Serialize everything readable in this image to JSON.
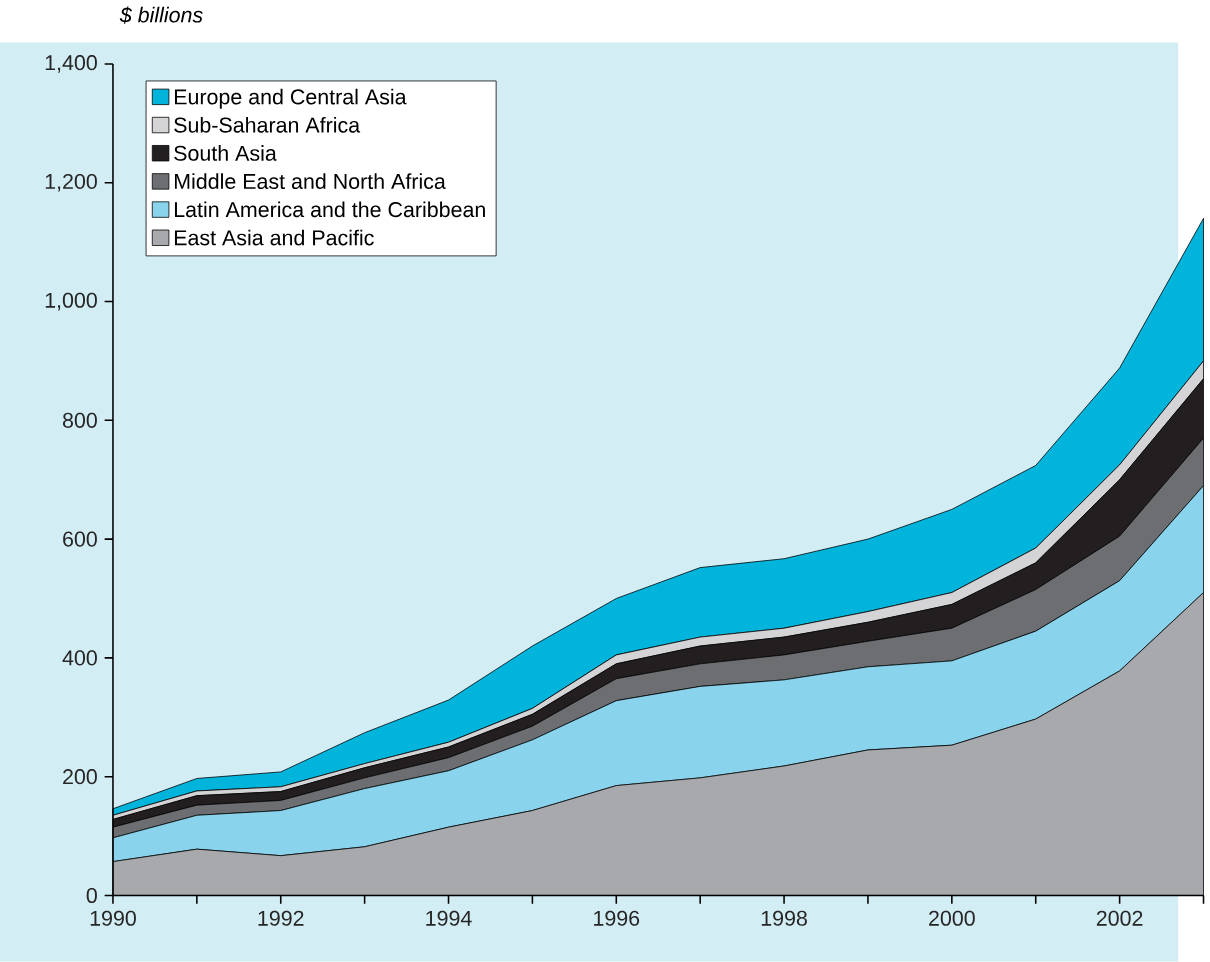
{
  "chart_data": {
    "type": "area",
    "stacked": true,
    "ylabel": "$ billions",
    "legend": "top left",
    "grid": false,
    "x": [
      1990,
      1991,
      1992,
      1993,
      1994,
      1995,
      1996,
      1997,
      1998,
      1999,
      2000,
      2001,
      2002,
      2003
    ],
    "xlim": [
      1990,
      2003
    ],
    "xticks": [
      1990,
      {
        "value": 1991,
        "label": null
      },
      1992,
      {
        "value": 1993,
        "label": null
      },
      1994,
      {
        "value": 1995,
        "label": null
      },
      1996,
      {
        "value": 1997,
        "label": null
      },
      1998,
      {
        "value": 1999,
        "label": null
      },
      2000,
      {
        "value": 2001,
        "label": null
      },
      2002,
      {
        "value": 2003,
        "label": null
      }
    ],
    "ylim": [
      0,
      1400
    ],
    "yticks": [
      0,
      200,
      400,
      600,
      800,
      {
        "value": 1000,
        "label": "1,000"
      },
      {
        "value": 1200,
        "label": "1,200"
      },
      {
        "value": 1400,
        "label": "1,400"
      }
    ],
    "series": [
      {
        "name": "East Asia and Pacific",
        "color": "#a7a9ac",
        "values": [
          57,
          78,
          67,
          82,
          115,
          143,
          185,
          198,
          218,
          245,
          253,
          297,
          378,
          510
        ]
      },
      {
        "name": "Latin America and the Caribbean",
        "color": "#89d4ec",
        "values": [
          40,
          57,
          76,
          98,
          95,
          119,
          143,
          154,
          145,
          140,
          142,
          148,
          152,
          180
        ]
      },
      {
        "name": "Middle East and North Africa",
        "color": "#6d6e71",
        "values": [
          18,
          17,
          17,
          18,
          22,
          23,
          37,
          38,
          42,
          43,
          55,
          70,
          75,
          80
        ]
      },
      {
        "name": "South Asia",
        "color": "#231f20",
        "values": [
          13,
          16,
          15,
          17,
          18,
          20,
          25,
          30,
          30,
          32,
          40,
          45,
          95,
          100
        ]
      },
      {
        "name": "Sub-Saharan Africa",
        "color": "#d4d4d6",
        "values": [
          7,
          8,
          8,
          7,
          8,
          10,
          15,
          15,
          15,
          18,
          20,
          25,
          25,
          30
        ]
      },
      {
        "name": "Europe and Central Asia",
        "color": "#00b4dc",
        "values": [
          11,
          21,
          25,
          52,
          71,
          105,
          95,
          117,
          117,
          122,
          140,
          139,
          163,
          240
        ]
      }
    ]
  }
}
